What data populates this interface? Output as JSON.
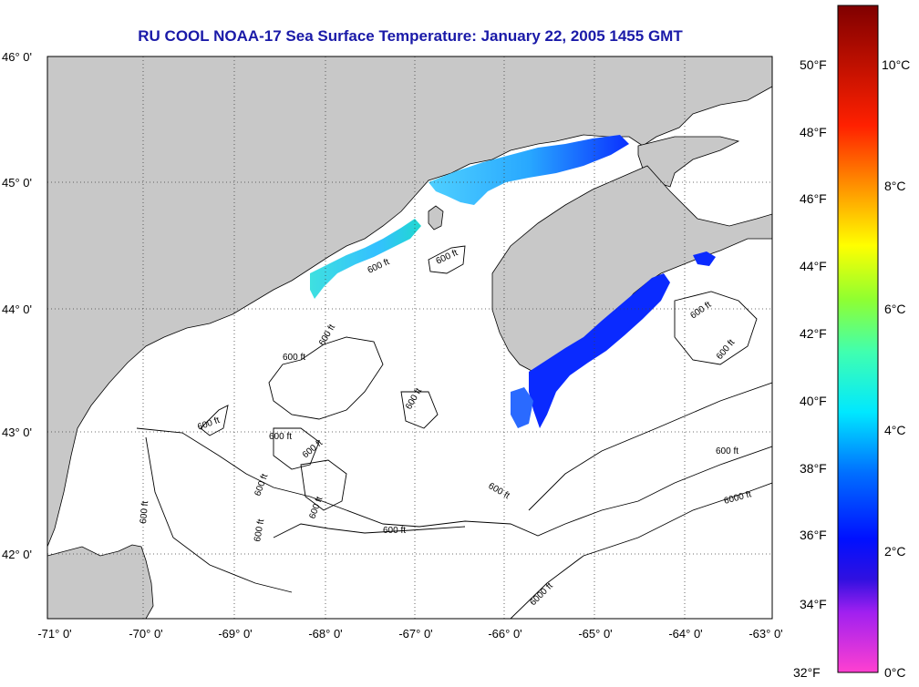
{
  "title": "RU COOL  NOAA-17  Sea Surface Temperature:  January 22, 2005 1455 GMT",
  "map": {
    "lat_labels": [
      "46° 0'",
      "45° 0'",
      "44° 0'",
      "43° 0'",
      "42° 0'"
    ],
    "lon_labels": [
      "-71° 0'",
      "-70° 0'",
      "-69° 0'",
      "-68° 0'",
      "-67° 0'",
      "-66° 0'",
      "-65° 0'",
      "-64° 0'",
      "-63° 0'"
    ],
    "contour_labels": [
      "600 ft",
      "600 ft",
      "600 ft",
      "600 ft",
      "600 ft",
      "600 ft",
      "600 ft",
      "600 ft",
      "600 ft",
      "600 ft",
      "600 ft",
      "600 ft",
      "600 ft",
      "600 ft",
      "600 ft",
      "600 ft",
      "600 ft",
      "6000 ft",
      "6000 ft"
    ],
    "colors": {
      "land": "#c8c8c8",
      "water": "#ffffff",
      "title": "#1a1aa8"
    }
  },
  "colorbar": {
    "fahrenheit": [
      "50°F",
      "48°F",
      "46°F",
      "44°F",
      "42°F",
      "40°F",
      "38°F",
      "36°F",
      "34°F",
      "32°F"
    ],
    "celsius": [
      "10°C",
      "8°C",
      "6°C",
      "4°C",
      "2°C",
      "0°C"
    ]
  }
}
